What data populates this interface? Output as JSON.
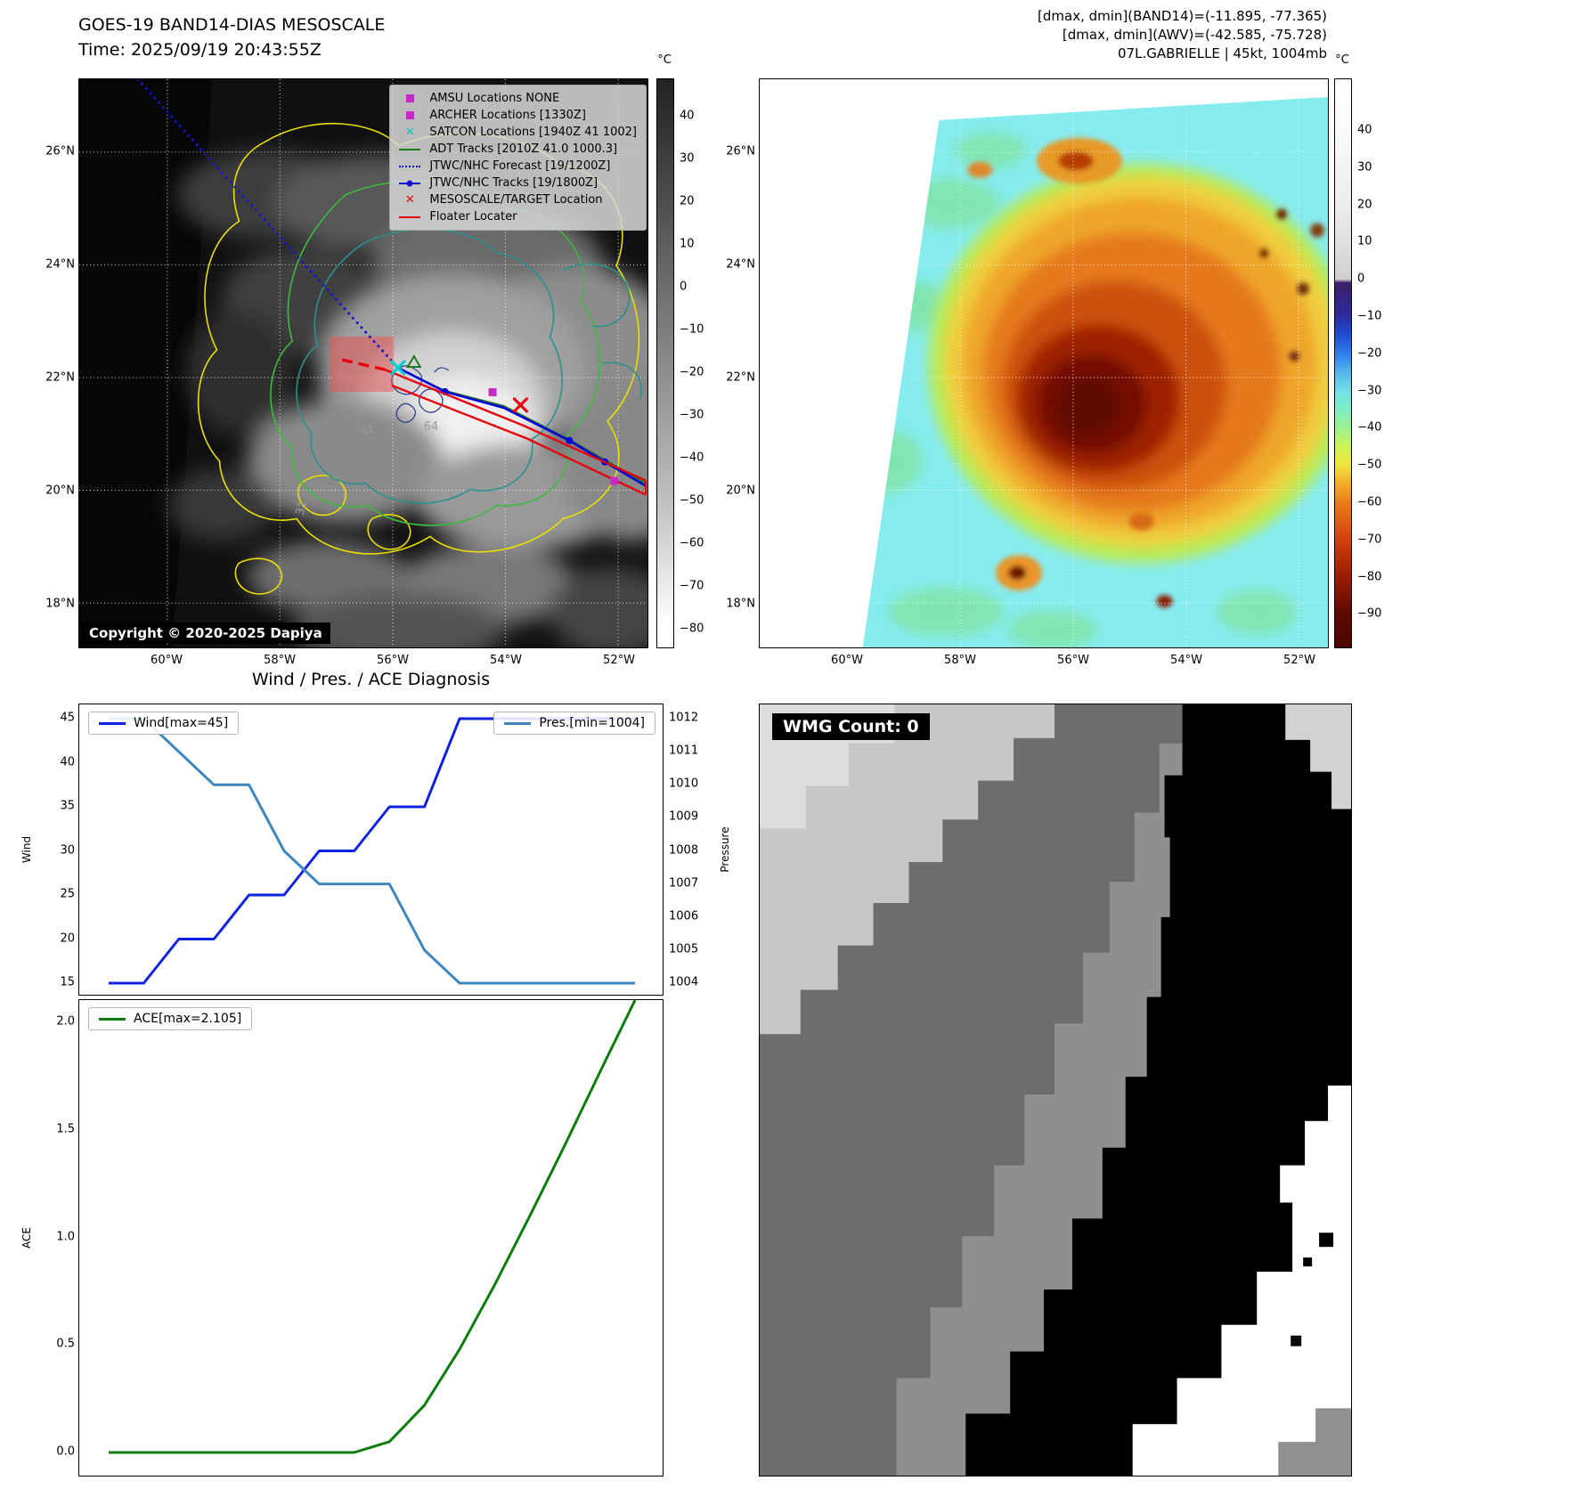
{
  "band14": {
    "title": "GOES-19 BAND14-DIAS MESOSCALE",
    "time": "Time: 2025/09/19 20:43:55Z",
    "copyright": "Copyright © 2020-2025 Dapiya",
    "legend_items": [
      {
        "label": "AMSU Locations NONE",
        "marker": "square",
        "color": "#c828c8"
      },
      {
        "label": "ARCHER Locations [1330Z]",
        "marker": "square",
        "color": "#c828c8"
      },
      {
        "label": "SATCON Locations [1940Z 41 1002]",
        "marker": "x",
        "color": "#00c2c2"
      },
      {
        "label": "ADT Tracks [2010Z 41.0 1000.3]",
        "marker": "line",
        "color": "#1f7a1f"
      },
      {
        "label": "JTWC/NHC Forecast [19/1200Z]",
        "marker": "dotted",
        "color": "#1414cc"
      },
      {
        "label": "JTWC/NHC Tracks [19/1800Z]",
        "marker": "line-dot",
        "color": "#1414cc"
      },
      {
        "label": "MESOSCALE/TARGET Location",
        "marker": "x",
        "color": "#e8000b"
      },
      {
        "label": "Floater Locater",
        "marker": "line",
        "color": "#e8000b"
      }
    ],
    "lat_ticks": [
      "26°N",
      "24°N",
      "22°N",
      "20°N",
      "18°N"
    ],
    "lon_ticks": [
      "60°W",
      "58°W",
      "56°W",
      "54°W",
      "52°W"
    ],
    "colorbar_unit": "°C",
    "colorbar_ticks": [
      "40",
      "30",
      "20",
      "10",
      "0",
      "−10",
      "−20",
      "−30",
      "−40",
      "−50",
      "−60",
      "−70",
      "−80"
    ],
    "contour_labels": [
      "64",
      "31",
      "31"
    ]
  },
  "awv": {
    "header1": "[dmax, dmin](BAND14)=(-11.895, -77.365)",
    "header2": "[dmax, dmin](AWV)=(-42.585, -75.728)",
    "header3": "07L.GABRIELLE | 45kt, 1004mb",
    "lat_ticks": [
      "26°N",
      "24°N",
      "22°N",
      "20°N",
      "18°N"
    ],
    "lon_ticks": [
      "60°W",
      "58°W",
      "56°W",
      "54°W",
      "52°W"
    ],
    "colorbar_unit": "°C",
    "colorbar_ticks": [
      "40",
      "30",
      "20",
      "10",
      "0",
      "−10",
      "−20",
      "−30",
      "−40",
      "−50",
      "−60",
      "−70",
      "−80",
      "−90"
    ]
  },
  "diagnosis": {
    "title": "Wind / Pres. / ACE Diagnosis",
    "wind_ylabel": "Wind",
    "pres_ylabel": "Pressure",
    "ace_ylabel": "ACE",
    "wind_tick_labels": [
      "45",
      "40",
      "35",
      "30",
      "25",
      "20",
      "15"
    ],
    "pres_tick_labels": [
      "1012",
      "1011",
      "1010",
      "1009",
      "1008",
      "1007",
      "1006",
      "1005",
      "1004"
    ],
    "ace_tick_labels": [
      "2.0",
      "1.5",
      "1.0",
      "0.5",
      "0.0"
    ]
  },
  "wmg": {
    "label": "WMG Count: 0"
  },
  "chart_data": [
    {
      "type": "line",
      "title": "Wind / Pres. / ACE Diagnosis",
      "x": [
        0,
        1,
        2,
        3,
        4,
        5,
        6,
        7,
        8,
        9,
        10,
        11,
        12,
        13,
        14,
        15
      ],
      "series": [
        {
          "name": "Wind[max=45]",
          "axis": "left",
          "color": "#0f22e0",
          "values": [
            15,
            15,
            20,
            20,
            25,
            25,
            30,
            30,
            35,
            35,
            45,
            45,
            45,
            45,
            45,
            45
          ]
        },
        {
          "name": "Pres.[min=1004]",
          "axis": "right",
          "color": "#3f86bd",
          "values": [
            1012,
            1012,
            1011,
            1010,
            1010,
            1008,
            1007,
            1007,
            1007,
            1005,
            1004,
            1004,
            1004,
            1004,
            1004,
            1004
          ]
        }
      ],
      "left_axis": {
        "label": "Wind",
        "lim": [
          13.5,
          46.5
        ],
        "ticks": [
          15,
          20,
          25,
          30,
          35,
          40,
          45
        ]
      },
      "right_axis": {
        "label": "Pressure",
        "lim": [
          1003.6,
          1012.4
        ],
        "ticks": [
          1004,
          1005,
          1006,
          1007,
          1008,
          1009,
          1010,
          1011,
          1012
        ]
      },
      "grid": false,
      "legend_position": [
        "upper left",
        "upper right"
      ]
    },
    {
      "type": "line",
      "title": "",
      "x": [
        0,
        1,
        2,
        3,
        4,
        5,
        6,
        7,
        8,
        9,
        10,
        11,
        12,
        13,
        14,
        15
      ],
      "series": [
        {
          "name": "ACE[max=2.105]",
          "axis": "left",
          "color": "#0a7d0a",
          "values": [
            0,
            0,
            0,
            0,
            0,
            0,
            0,
            0,
            0.05,
            0.22,
            0.48,
            0.78,
            1.1,
            1.43,
            1.77,
            2.105
          ]
        }
      ],
      "left_axis": {
        "label": "ACE",
        "lim": [
          -0.1,
          2.2
        ],
        "ticks": [
          0.0,
          0.5,
          1.0,
          1.5,
          2.0
        ]
      },
      "grid": false,
      "legend_position": [
        "upper left"
      ]
    }
  ]
}
